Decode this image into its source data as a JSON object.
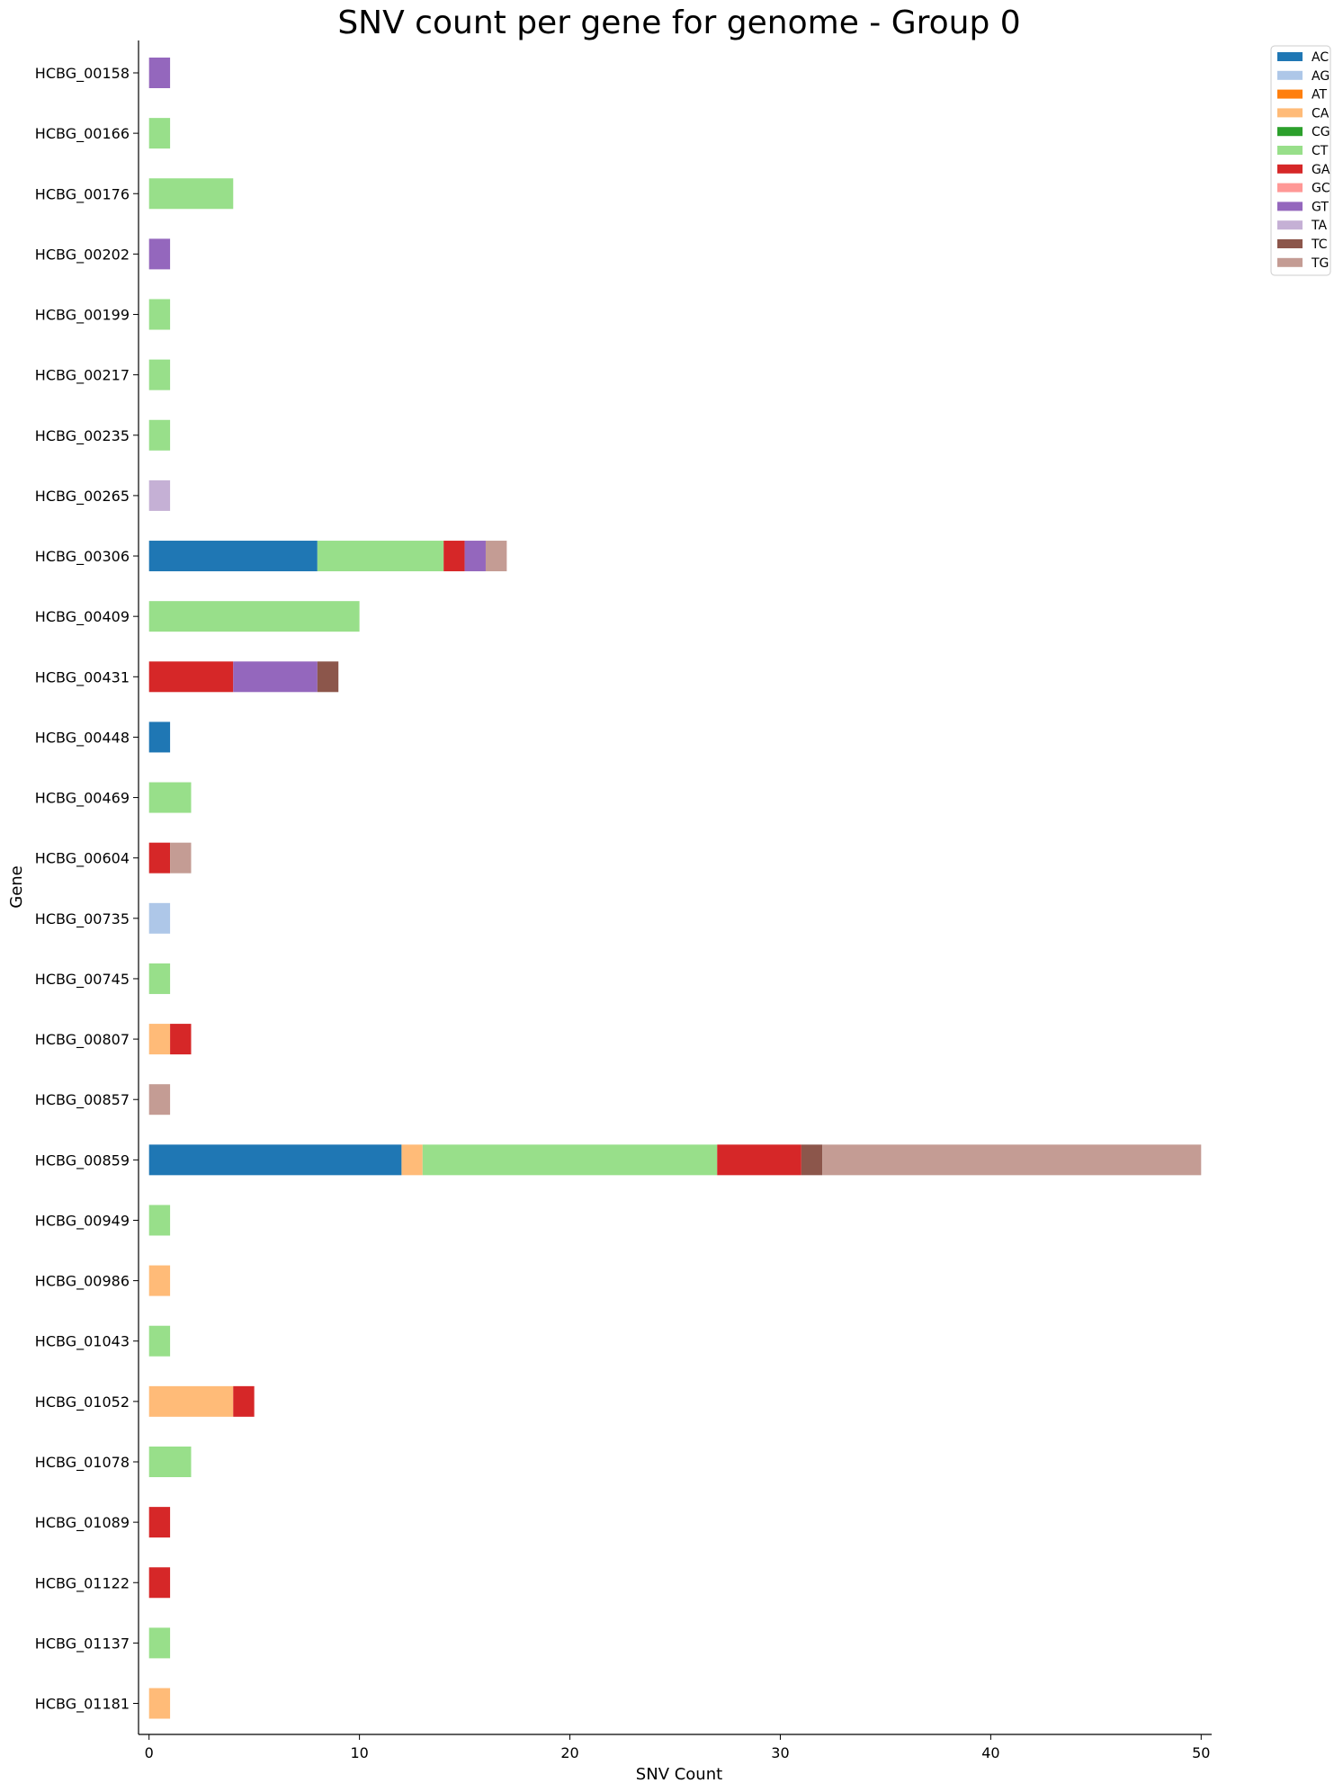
{
  "chart_data": {
    "type": "bar",
    "orientation": "horizontal",
    "stacked": true,
    "title": "SNV count per gene for genome - Group 0",
    "xlabel": "SNV Count",
    "ylabel": "Gene",
    "xlim": [
      -0.5,
      50.5
    ],
    "xticks": [
      0,
      10,
      20,
      30,
      40,
      50
    ],
    "grid": false,
    "legend_position": "top-right",
    "categories": [
      "HCBG_00158",
      "HCBG_00166",
      "HCBG_00176",
      "HCBG_00202",
      "HCBG_00199",
      "HCBG_00217",
      "HCBG_00235",
      "HCBG_00265",
      "HCBG_00306",
      "HCBG_00409",
      "HCBG_00431",
      "HCBG_00448",
      "HCBG_00469",
      "HCBG_00604",
      "HCBG_00735",
      "HCBG_00745",
      "HCBG_00807",
      "HCBG_00857",
      "HCBG_00859",
      "HCBG_00949",
      "HCBG_00986",
      "HCBG_01043",
      "HCBG_01052",
      "HCBG_01078",
      "HCBG_01089",
      "HCBG_01122",
      "HCBG_01137",
      "HCBG_01181"
    ],
    "series": [
      {
        "name": "AC",
        "color": "#1f77b4",
        "values": [
          0,
          0,
          0,
          0,
          0,
          0,
          0,
          0,
          8,
          0,
          0,
          1,
          0,
          0,
          0,
          0,
          0,
          0,
          12,
          0,
          0,
          0,
          0,
          0,
          0,
          0,
          0,
          0
        ]
      },
      {
        "name": "AG",
        "color": "#aec7e8",
        "values": [
          0,
          0,
          0,
          0,
          0,
          0,
          0,
          0,
          0,
          0,
          0,
          0,
          0,
          0,
          1,
          0,
          0,
          0,
          0,
          0,
          0,
          0,
          0,
          0,
          0,
          0,
          0,
          0
        ]
      },
      {
        "name": "AT",
        "color": "#ff7f0e",
        "values": [
          0,
          0,
          0,
          0,
          0,
          0,
          0,
          0,
          0,
          0,
          0,
          0,
          0,
          0,
          0,
          0,
          0,
          0,
          0,
          0,
          0,
          0,
          0,
          0,
          0,
          0,
          0,
          0
        ]
      },
      {
        "name": "CA",
        "color": "#ffbb78",
        "values": [
          0,
          0,
          0,
          0,
          0,
          0,
          0,
          0,
          0,
          0,
          0,
          0,
          0,
          0,
          0,
          0,
          1,
          0,
          1,
          0,
          1,
          0,
          4,
          0,
          0,
          0,
          0,
          1
        ]
      },
      {
        "name": "CG",
        "color": "#2ca02c",
        "values": [
          0,
          0,
          0,
          0,
          0,
          0,
          0,
          0,
          0,
          0,
          0,
          0,
          0,
          0,
          0,
          0,
          0,
          0,
          0,
          0,
          0,
          0,
          0,
          0,
          0,
          0,
          0,
          0
        ]
      },
      {
        "name": "CT",
        "color": "#98df8a",
        "values": [
          0,
          1,
          4,
          0,
          1,
          1,
          1,
          0,
          6,
          10,
          0,
          0,
          2,
          0,
          0,
          1,
          0,
          0,
          14,
          1,
          0,
          1,
          0,
          2,
          0,
          0,
          1,
          0
        ]
      },
      {
        "name": "GA",
        "color": "#d62728",
        "values": [
          0,
          0,
          0,
          0,
          0,
          0,
          0,
          0,
          1,
          0,
          4,
          0,
          0,
          1,
          0,
          0,
          1,
          0,
          4,
          0,
          0,
          0,
          1,
          0,
          1,
          1,
          0,
          0
        ]
      },
      {
        "name": "GC",
        "color": "#ff9896",
        "values": [
          0,
          0,
          0,
          0,
          0,
          0,
          0,
          0,
          0,
          0,
          0,
          0,
          0,
          0,
          0,
          0,
          0,
          0,
          0,
          0,
          0,
          0,
          0,
          0,
          0,
          0,
          0,
          0
        ]
      },
      {
        "name": "GT",
        "color": "#9467bd",
        "values": [
          1,
          0,
          0,
          1,
          0,
          0,
          0,
          0,
          1,
          0,
          4,
          0,
          0,
          0,
          0,
          0,
          0,
          0,
          0,
          0,
          0,
          0,
          0,
          0,
          0,
          0,
          0,
          0
        ]
      },
      {
        "name": "TA",
        "color": "#c5b0d5",
        "values": [
          0,
          0,
          0,
          0,
          0,
          0,
          0,
          1,
          0,
          0,
          0,
          0,
          0,
          0,
          0,
          0,
          0,
          0,
          0,
          0,
          0,
          0,
          0,
          0,
          0,
          0,
          0,
          0
        ]
      },
      {
        "name": "TC",
        "color": "#8c564b",
        "values": [
          0,
          0,
          0,
          0,
          0,
          0,
          0,
          0,
          0,
          0,
          1,
          0,
          0,
          0,
          0,
          0,
          0,
          0,
          1,
          0,
          0,
          0,
          0,
          0,
          0,
          0,
          0,
          0
        ]
      },
      {
        "name": "TG",
        "color": "#c49c94",
        "values": [
          0,
          0,
          0,
          0,
          0,
          0,
          0,
          0,
          1,
          0,
          0,
          0,
          0,
          1,
          0,
          0,
          0,
          1,
          18,
          0,
          0,
          0,
          0,
          0,
          0,
          0,
          0,
          0
        ]
      }
    ]
  }
}
